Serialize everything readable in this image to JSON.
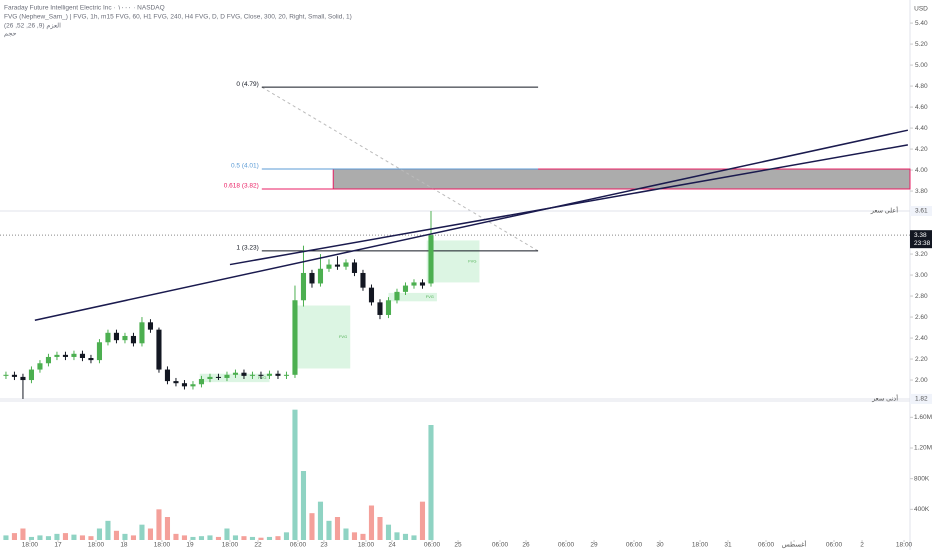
{
  "chart_data": {
    "type": "candlestick",
    "title": "Faraday Future Intelligent Electric Inc · ١٠٠٠ · NASDAQ",
    "indicator": "FVG (Nephew_Sam_) | FVG, 1h, m15 FVG, 60, H1 FVG, 240, H4 FVG, D, D FVG, Close, 300, 20, Right, Small, Solid, 1)",
    "indicator2": "العزم (9, 26, 52, 26)",
    "indicator3": "حجم",
    "currency": "USD",
    "open": [
      2.04,
      2.05,
      2.03,
      2.0,
      2.1,
      2.16,
      2.22,
      2.24,
      2.22,
      2.25,
      2.21,
      2.19,
      2.36,
      2.45,
      2.38,
      2.42,
      2.35,
      2.55,
      2.48,
      2.1,
      1.99,
      1.97,
      1.94,
      1.96,
      2.01,
      2.03,
      2.02,
      2.05,
      2.07,
      2.04,
      2.05,
      2.04,
      2.06,
      2.04,
      2.05,
      2.76,
      3.02,
      2.92,
      3.06,
      3.1,
      3.08,
      3.12,
      3.02,
      2.88,
      2.74,
      2.62,
      2.76,
      2.84,
      2.9,
      2.93,
      2.92
    ],
    "high": [
      2.08,
      2.08,
      2.06,
      2.13,
      2.19,
      2.25,
      2.27,
      2.27,
      2.28,
      2.28,
      2.24,
      2.39,
      2.48,
      2.48,
      2.45,
      2.45,
      2.6,
      2.58,
      2.5,
      2.13,
      2.02,
      2.0,
      1.99,
      2.04,
      2.06,
      2.06,
      2.08,
      2.1,
      2.1,
      2.08,
      2.08,
      2.09,
      2.09,
      2.08,
      2.9,
      3.28,
      3.05,
      3.2,
      3.15,
      3.18,
      3.15,
      3.15,
      3.05,
      2.91,
      2.77,
      2.79,
      2.87,
      2.93,
      2.96,
      2.96,
      3.61
    ],
    "low": [
      2.01,
      2.0,
      1.82,
      1.97,
      2.07,
      2.13,
      2.19,
      2.19,
      2.19,
      2.18,
      2.16,
      2.16,
      2.33,
      2.35,
      2.35,
      2.32,
      2.32,
      2.45,
      2.07,
      1.96,
      1.94,
      1.91,
      1.91,
      1.93,
      1.98,
      2.0,
      1.99,
      2.02,
      2.01,
      2.01,
      2.01,
      2.01,
      2.01,
      2.01,
      2.02,
      2.7,
      2.88,
      2.89,
      3.03,
      3.05,
      3.05,
      2.99,
      2.85,
      2.71,
      2.58,
      2.59,
      2.73,
      2.81,
      2.87,
      2.87,
      2.89
    ],
    "close": [
      2.05,
      2.03,
      2.0,
      2.1,
      2.16,
      2.22,
      2.24,
      2.22,
      2.25,
      2.21,
      2.19,
      2.36,
      2.45,
      2.38,
      2.42,
      2.35,
      2.55,
      2.48,
      2.1,
      1.99,
      1.97,
      1.94,
      1.96,
      2.01,
      2.03,
      2.02,
      2.05,
      2.07,
      2.04,
      2.05,
      2.04,
      2.06,
      2.04,
      2.05,
      2.76,
      3.02,
      2.92,
      3.06,
      3.1,
      3.08,
      3.12,
      3.02,
      2.88,
      2.74,
      2.62,
      2.76,
      2.84,
      2.9,
      2.93,
      2.9,
      3.38
    ],
    "volume": [
      60000,
      90000,
      150000,
      40000,
      60000,
      50000,
      80000,
      90000,
      70000,
      60000,
      50000,
      150000,
      250000,
      120000,
      80000,
      60000,
      200000,
      150000,
      400000,
      300000,
      80000,
      60000,
      40000,
      50000,
      60000,
      40000,
      150000,
      60000,
      50000,
      40000,
      30000,
      40000,
      50000,
      100000,
      1700000,
      900000,
      350000,
      500000,
      250000,
      300000,
      150000,
      100000,
      80000,
      450000,
      300000,
      200000,
      100000,
      80000,
      60000,
      500000,
      1500000
    ],
    "up_color": "#4caf50",
    "down_color": "#131722",
    "volume_up_color": "#8fd3c3",
    "volume_down_color": "#f4a09a",
    "xlim": [
      -0.7,
      106.35
    ],
    "ylim": [
      1.81,
      5.62
    ],
    "volume_ylim": [
      0,
      1800000
    ],
    "yticks": [
      {
        "value": 2,
        "label": "2.00"
      },
      {
        "value": 2.2,
        "label": "2.20"
      },
      {
        "value": 2.4,
        "label": "2.40"
      },
      {
        "value": 2.6,
        "label": "2.60"
      },
      {
        "value": 2.8,
        "label": "2.80"
      },
      {
        "value": 3,
        "label": "3.00"
      },
      {
        "value": 3.2,
        "label": "3.20"
      },
      {
        "value": 3.4,
        "label": "3.40"
      },
      {
        "value": 3.6,
        "label": "3.60"
      },
      {
        "value": 3.8,
        "label": "3.80"
      },
      {
        "value": 4,
        "label": "4.00"
      },
      {
        "value": 4.2,
        "label": "4.20"
      },
      {
        "value": 4.4,
        "label": "4.40"
      },
      {
        "value": 4.6,
        "label": "4.60"
      },
      {
        "value": 4.8,
        "label": "4.80"
      },
      {
        "value": 5,
        "label": "5.00"
      },
      {
        "value": 5.2,
        "label": "5.20"
      },
      {
        "value": 5.4,
        "label": "5.40"
      }
    ],
    "volume_yticks": [
      {
        "value": 400000,
        "label": "400K"
      },
      {
        "value": 800000,
        "label": "800K"
      },
      {
        "value": 1200000,
        "label": "1.20M"
      },
      {
        "value": 1600000,
        "label": "1.60M"
      }
    ],
    "xticks": [
      {
        "value": 2.82,
        "label": "18:00"
      },
      {
        "value": 6.12,
        "label": "17"
      },
      {
        "value": 10.59,
        "label": "18:00"
      },
      {
        "value": 13.88,
        "label": "18"
      },
      {
        "value": 18.35,
        "label": "18:00"
      },
      {
        "value": 21.65,
        "label": "19"
      },
      {
        "value": 26.35,
        "label": "18:00"
      },
      {
        "value": 29.65,
        "label": "22"
      },
      {
        "value": 34.35,
        "label": "06:00"
      },
      {
        "value": 37.41,
        "label": "23"
      },
      {
        "value": 42.35,
        "label": "18:00"
      },
      {
        "value": 45.41,
        "label": "24"
      },
      {
        "value": 50.12,
        "label": "06:00"
      },
      {
        "value": 53.18,
        "label": "25"
      },
      {
        "value": 58.12,
        "label": "06:00"
      },
      {
        "value": 61.18,
        "label": "26"
      },
      {
        "value": 65.88,
        "label": "06:00"
      },
      {
        "value": 69.18,
        "label": "29"
      },
      {
        "value": 73.88,
        "label": "06:00"
      },
      {
        "value": 76.94,
        "label": "30"
      },
      {
        "value": 81.65,
        "label": "18:00"
      },
      {
        "value": 84.94,
        "label": "31"
      },
      {
        "value": 89.41,
        "label": "06:00"
      },
      {
        "value": 92.71,
        "label": "أغسطس"
      },
      {
        "value": 97.41,
        "label": "06:00"
      },
      {
        "value": 100.71,
        "label": "2"
      },
      {
        "value": 105.65,
        "label": "18:00"
      }
    ],
    "fib": {
      "x": [
        30.1,
        62.6
      ],
      "levels": [
        {
          "value": 4.79,
          "label": "0 (4.79)",
          "color": "#131722"
        },
        {
          "value": 4.01,
          "label": "0.5 (4.01)",
          "color": "#5b9bd5"
        },
        {
          "value": 3.82,
          "label": "0.618 (3.82)",
          "color": "#e91e63"
        },
        {
          "value": 3.23,
          "label": "1 (3.23)",
          "color": "#131722"
        }
      ]
    },
    "zone": {
      "x": [
        38.5,
        106.35
      ],
      "y": [
        3.82,
        4.01
      ],
      "color": "#9e9e9e",
      "border": "#e91e63"
    },
    "trendlines": [
      {
        "x": [
          3.4,
          106.1
        ],
        "y": [
          2.57,
          4.38
        ],
        "color": "#1a1a4e"
      },
      {
        "x": [
          26.35,
          106.1
        ],
        "y": [
          3.1,
          4.24
        ],
        "color": "#1a1a4e"
      }
    ],
    "fvg_label": "FVG",
    "fvg_color": "#dcf5e3",
    "fvg_boxes": [
      {
        "x": [
          33.8,
          40.5
        ],
        "y": [
          2.11,
          2.71
        ]
      },
      {
        "x": [
          49.5,
          55.7
        ],
        "y": [
          2.93,
          3.33
        ]
      },
      {
        "x": [
          45.0,
          50.7
        ],
        "y": [
          2.75,
          2.83
        ]
      },
      {
        "x": [
          22.8,
          31.0
        ],
        "y": [
          1.98,
          2.06
        ]
      }
    ],
    "high_marker": {
      "value": 3.61,
      "label": "أعلى سعر"
    },
    "low_marker": {
      "value": 1.82,
      "label": "أدنى سعر"
    },
    "last_price": 3.38,
    "countdown": "23:38"
  }
}
